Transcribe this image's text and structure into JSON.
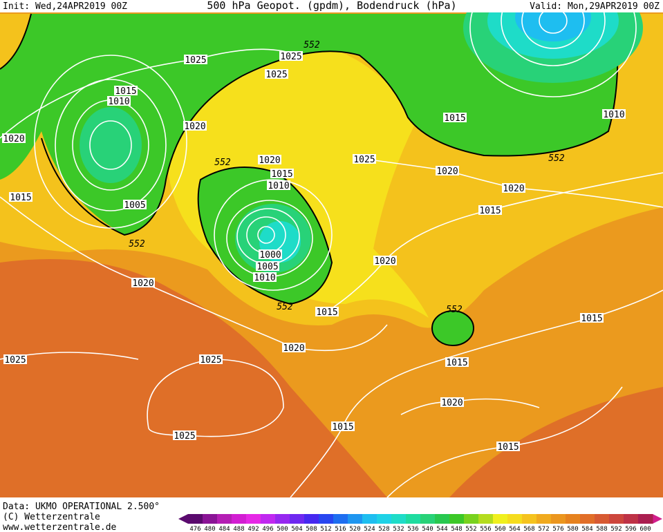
{
  "header": {
    "init": "Init: Wed,24APR2019 00Z",
    "title": "500 hPa Geopot. (gpdm), Bodendruck (hPa)",
    "valid": "Valid: Mon,29APR2019 00Z"
  },
  "footer": {
    "data": "Data: UKMO OPERATIONAL 2.500°",
    "copyright": "(C) Wetterzentrale",
    "url": "www.wetterzentrale.de"
  },
  "colorbar": {
    "labels": [
      "476",
      "480",
      "484",
      "488",
      "492",
      "496",
      "500",
      "504",
      "508",
      "512",
      "516",
      "520",
      "524",
      "528",
      "532",
      "536",
      "540",
      "544",
      "548",
      "552",
      "556",
      "560",
      "564",
      "568",
      "572",
      "576",
      "580",
      "584",
      "588",
      "592",
      "596",
      "600"
    ],
    "colors": [
      "#5a0a6e",
      "#8a1496",
      "#b41eb4",
      "#d21ed2",
      "#e628e6",
      "#c028f0",
      "#9628f0",
      "#6e28f0",
      "#4628f0",
      "#2846f0",
      "#1e6ef0",
      "#1e96f0",
      "#1ebef0",
      "#1ed2e6",
      "#1edcc8",
      "#1edca0",
      "#28d278",
      "#28c850",
      "#3cc828",
      "#78d21e",
      "#b4dc1e",
      "#f0f01e",
      "#f5dc1e",
      "#f5c31e",
      "#f0aa1e",
      "#eb961e",
      "#e6821e",
      "#e16e28",
      "#d75a32",
      "#cd463c",
      "#be3246",
      "#aa1e50"
    ]
  },
  "map": {
    "isobar_labels": [
      "1025",
      "1025",
      "1025",
      "1015",
      "1010",
      "1020",
      "1020",
      "1005",
      "1015",
      "1020",
      "1015",
      "1010",
      "1025",
      "1015",
      "1010",
      "1020",
      "1020",
      "1015",
      "1000",
      "1005",
      "1010",
      "1015",
      "1020",
      "1020",
      "1020",
      "1015",
      "1015",
      "1025",
      "1025",
      "1020",
      "1025",
      "1015",
      "1015"
    ],
    "geopotential_labels": [
      "552",
      "552",
      "552",
      "552",
      "552",
      "552"
    ]
  }
}
